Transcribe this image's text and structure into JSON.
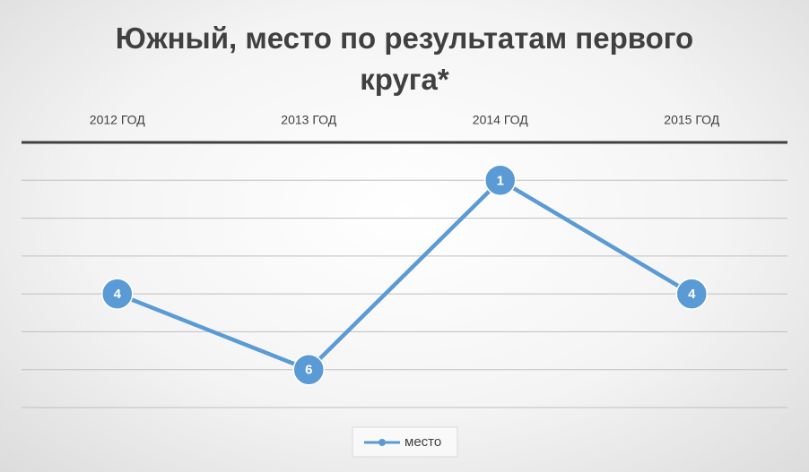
{
  "chart_data": {
    "type": "line",
    "title": "Южный, место по результатам первого круга*",
    "categories": [
      "2012 ГОД",
      "2013 ГОД",
      "2014 ГОД",
      "2015 ГОД"
    ],
    "series": [
      {
        "name": "место",
        "color": "#5b9bd5",
        "values": [
          4,
          6,
          1,
          4
        ]
      }
    ],
    "ylim": [
      0,
      7
    ],
    "yticks": [
      0,
      1,
      2,
      3,
      4,
      5,
      6,
      7
    ],
    "y_reversed": true,
    "grid": true,
    "x_axis_position": "top",
    "legend": "bottom"
  }
}
